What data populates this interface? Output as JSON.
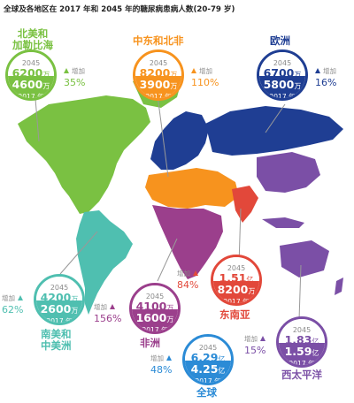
{
  "title": "全球及各地区在 2017 年和 2045 年的糖尿病患病人数(20-79 岁)",
  "labels": {
    "year_2045": "2045",
    "year_2017": "2017 年",
    "increase": "增加"
  },
  "colors": {
    "na": "#7ac142",
    "mena": "#f7931e",
    "eu": "#1f3e93",
    "sa": "#4fbfb0",
    "af": "#9b3f8c",
    "sea": "#e2483a",
    "wp": "#7b4fa6",
    "world": "#2b8bd6"
  },
  "regions": [
    {
      "id": "na",
      "name": "北美和\n加勒比海",
      "v2045": "6200",
      "u2045": "万",
      "v2017": "4600",
      "u2017": "万",
      "increase": "35%"
    },
    {
      "id": "mena",
      "name": "中东和北非",
      "v2045": "8200",
      "u2045": "万",
      "v2017": "3900",
      "u2017": "万",
      "increase": "110%"
    },
    {
      "id": "eu",
      "name": "欧洲",
      "v2045": "6700",
      "u2045": "万",
      "v2017": "5800",
      "u2017": "万",
      "increase": "16%"
    },
    {
      "id": "sea",
      "name": "东南亚",
      "v2045": "1.51",
      "u2045": "亿",
      "v2017": "8200",
      "u2017": "万",
      "increase": "84%"
    },
    {
      "id": "sa",
      "name": "南美和\n中美洲",
      "v2045": "4200",
      "u2045": "万",
      "v2017": "2600",
      "u2017": "万",
      "increase": "62%"
    },
    {
      "id": "af",
      "name": "非洲",
      "v2045": "4100",
      "u2045": "万",
      "v2017": "1600",
      "u2017": "万",
      "increase": "156%"
    },
    {
      "id": "wp",
      "name": "西太平洋",
      "v2045": "1.83",
      "u2045": "亿",
      "v2017": "1.59",
      "u2017": "亿",
      "increase": "15%"
    },
    {
      "id": "world",
      "name": "全球",
      "v2045": "6.29",
      "u2045": "亿",
      "v2017": "4.25",
      "u2017": "亿",
      "increase": "48%"
    }
  ]
}
